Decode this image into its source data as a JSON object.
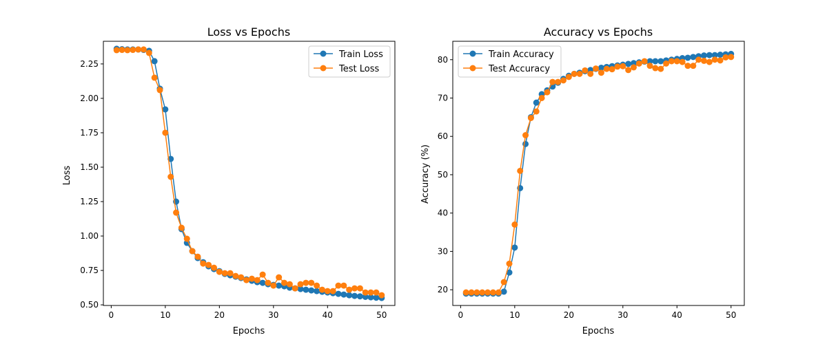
{
  "colors": {
    "train": "#1f77b4",
    "test": "#ff7f0e",
    "axes": "#000000",
    "background": "#ffffff",
    "legend_border": "#cccccc"
  },
  "chart_data": [
    {
      "type": "line",
      "title": "Loss vs Epochs",
      "xlabel": "Epochs",
      "ylabel": "Loss",
      "xlim": [
        -1.45,
        52.45
      ],
      "ylim": [
        0.4955,
        2.4145
      ],
      "xticks": [
        0,
        10,
        20,
        30,
        40,
        50
      ],
      "xtick_labels": [
        "0",
        "10",
        "20",
        "30",
        "40",
        "50"
      ],
      "yticks": [
        0.5,
        0.75,
        1.0,
        1.25,
        1.5,
        1.75,
        2.0,
        2.25
      ],
      "ytick_labels": [
        "0.50",
        "0.75",
        "1.00",
        "1.25",
        "1.50",
        "1.75",
        "2.00",
        "2.25"
      ],
      "grid": false,
      "legend_position": "upper right",
      "x": [
        1,
        2,
        3,
        4,
        5,
        6,
        7,
        8,
        9,
        10,
        11,
        12,
        13,
        14,
        15,
        16,
        17,
        18,
        19,
        20,
        21,
        22,
        23,
        24,
        25,
        26,
        27,
        28,
        29,
        30,
        31,
        32,
        33,
        34,
        35,
        36,
        37,
        38,
        39,
        40,
        41,
        42,
        43,
        44,
        45,
        46,
        47,
        48,
        49,
        50
      ],
      "series": [
        {
          "name": "Train Loss",
          "color": "#1f77b4",
          "values": [
            2.36,
            2.357,
            2.355,
            2.355,
            2.355,
            2.352,
            2.345,
            2.27,
            2.07,
            1.92,
            1.56,
            1.25,
            1.05,
            0.95,
            0.89,
            0.84,
            0.81,
            0.78,
            0.76,
            0.745,
            0.725,
            0.715,
            0.705,
            0.695,
            0.685,
            0.675,
            0.665,
            0.66,
            0.65,
            0.645,
            0.64,
            0.635,
            0.625,
            0.62,
            0.615,
            0.61,
            0.605,
            0.6,
            0.595,
            0.59,
            0.585,
            0.58,
            0.575,
            0.57,
            0.565,
            0.562,
            0.558,
            0.555,
            0.552,
            0.55
          ]
        },
        {
          "name": "Test Loss",
          "color": "#ff7f0e",
          "values": [
            2.35,
            2.352,
            2.35,
            2.352,
            2.355,
            2.355,
            2.33,
            2.15,
            2.06,
            1.75,
            1.43,
            1.17,
            1.06,
            0.98,
            0.89,
            0.85,
            0.8,
            0.79,
            0.77,
            0.74,
            0.73,
            0.73,
            0.71,
            0.7,
            0.68,
            0.69,
            0.68,
            0.72,
            0.66,
            0.64,
            0.7,
            0.66,
            0.65,
            0.62,
            0.65,
            0.66,
            0.66,
            0.64,
            0.61,
            0.6,
            0.6,
            0.64,
            0.64,
            0.61,
            0.62,
            0.62,
            0.59,
            0.59,
            0.59,
            0.57
          ]
        }
      ]
    },
    {
      "type": "line",
      "title": "Accuracy vs Epochs",
      "xlabel": "Epochs",
      "ylabel": "Accuracy (%)",
      "xlim": [
        -1.45,
        52.45
      ],
      "ylim": [
        15.9,
        84.8
      ],
      "xticks": [
        0,
        10,
        20,
        30,
        40,
        50
      ],
      "xtick_labels": [
        "0",
        "10",
        "20",
        "30",
        "40",
        "50"
      ],
      "yticks": [
        20,
        30,
        40,
        50,
        60,
        70,
        80
      ],
      "ytick_labels": [
        "20",
        "30",
        "40",
        "50",
        "60",
        "70",
        "80"
      ],
      "grid": false,
      "legend_position": "upper left",
      "x": [
        1,
        2,
        3,
        4,
        5,
        6,
        7,
        8,
        9,
        10,
        11,
        12,
        13,
        14,
        15,
        16,
        17,
        18,
        19,
        20,
        21,
        22,
        23,
        24,
        25,
        26,
        27,
        28,
        29,
        30,
        31,
        32,
        33,
        34,
        35,
        36,
        37,
        38,
        39,
        40,
        41,
        42,
        43,
        44,
        45,
        46,
        47,
        48,
        49,
        50
      ],
      "series": [
        {
          "name": "Train Accuracy",
          "color": "#1f77b4",
          "values": [
            19.0,
            19.0,
            19.0,
            19.0,
            19.0,
            19.0,
            19.0,
            19.5,
            24.5,
            31.0,
            46.5,
            58.0,
            65.0,
            68.8,
            71.0,
            72.0,
            73.0,
            74.0,
            75.0,
            75.8,
            76.3,
            76.6,
            77.0,
            77.3,
            77.6,
            77.9,
            78.1,
            78.3,
            78.5,
            78.7,
            78.9,
            79.1,
            79.3,
            79.5,
            79.6,
            79.6,
            79.6,
            79.8,
            80.0,
            80.2,
            80.4,
            80.5,
            80.7,
            80.9,
            81.1,
            81.2,
            81.2,
            81.3,
            81.4,
            81.5
          ]
        },
        {
          "name": "Test Accuracy",
          "color": "#ff7f0e",
          "values": [
            19.3,
            19.3,
            19.3,
            19.3,
            19.3,
            19.3,
            19.3,
            22.0,
            26.8,
            37.0,
            51.0,
            60.3,
            64.8,
            66.5,
            70.0,
            71.5,
            74.2,
            74.2,
            74.6,
            75.5,
            76.3,
            76.3,
            77.2,
            76.3,
            77.7,
            76.6,
            77.6,
            77.5,
            78.2,
            78.3,
            77.3,
            78.0,
            79.0,
            79.6,
            78.4,
            77.8,
            77.6,
            79.0,
            79.6,
            79.6,
            79.4,
            78.4,
            78.4,
            80.0,
            79.7,
            79.4,
            80.0,
            79.8,
            80.6,
            80.7
          ]
        }
      ]
    }
  ]
}
